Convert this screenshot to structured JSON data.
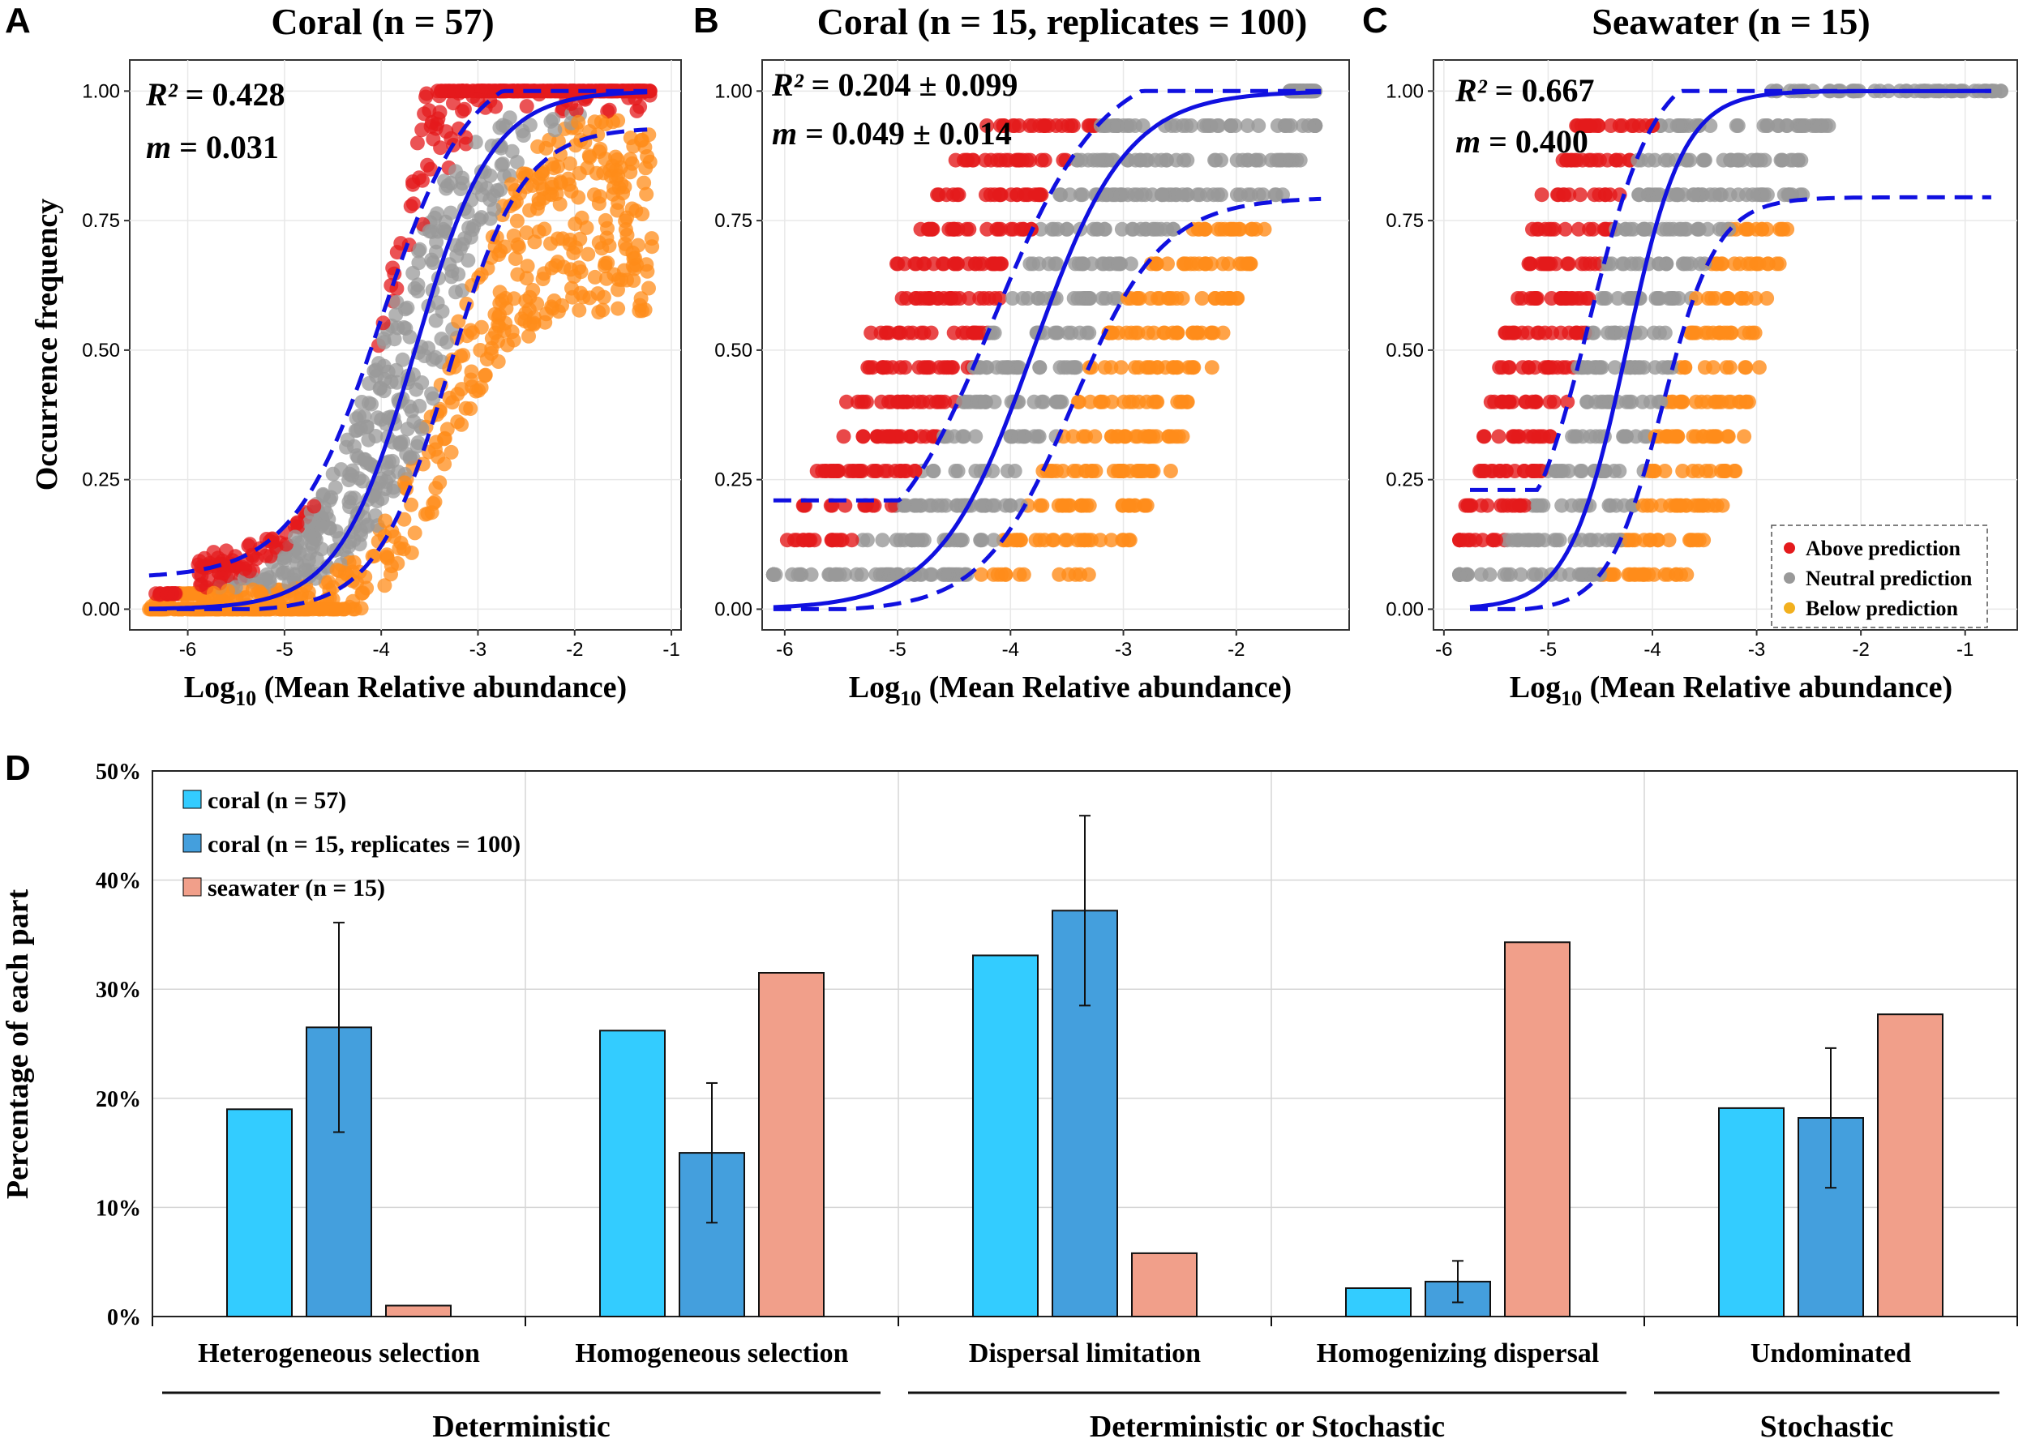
{
  "panel_labels": {
    "a": "A",
    "b": "B",
    "c": "C",
    "d": "D"
  },
  "colors": {
    "above": "#e41a1c",
    "neutral": "#999999",
    "below": "#ff8c1a",
    "fit": "#1010e0",
    "coral": "#33ccff",
    "coral_rep": "#449fdd",
    "seawater": "#f19f8a"
  },
  "chart_data": [
    {
      "id": "A",
      "type": "scatter",
      "title": "Coral (n = 57)",
      "xlabel_pre": "Log",
      "xlabel_sub": "10",
      "xlabel_post": " (Mean Relative abundance)",
      "ylabel": "Occurrence frequency",
      "xlim": [
        -6.6,
        -0.9
      ],
      "ylim": [
        -0.04,
        1.06
      ],
      "xticks": [
        "-6",
        "-5",
        "-4",
        "-3",
        "-2",
        "-1"
      ],
      "xtick_values": [
        -6,
        -5,
        -4,
        -3,
        -2,
        -1
      ],
      "yticks": [
        "0.00",
        "0.25",
        "0.50",
        "0.75",
        "1.00"
      ],
      "ytick_values": [
        0,
        0.25,
        0.5,
        0.75,
        1.0
      ],
      "r2_label": "R²",
      "r2_value": "= 0.428",
      "m_label": "m",
      "m_value": "= 0.031",
      "fit": {
        "midpoint": -3.65,
        "slope": 2.2,
        "upper_plateau": 0.935,
        "start_x": -6.4,
        "end_x": -1.25
      },
      "scatter_mode": "continuous",
      "x_range": [
        -6.4,
        -1.2
      ],
      "n_points": 1400
    },
    {
      "id": "B",
      "type": "scatter",
      "title": "Coral (n = 15, replicates = 100)",
      "xlabel_pre": "Log",
      "xlabel_sub": "10",
      "xlabel_post": " (Mean Relative abundance)",
      "ylabel": "",
      "xlim": [
        -6.2,
        -1.0
      ],
      "ylim": [
        -0.04,
        1.06
      ],
      "xticks": [
        "-6",
        "-5",
        "-4",
        "-3",
        "-2"
      ],
      "xtick_values": [
        -6,
        -5,
        -4,
        -3,
        -2
      ],
      "yticks": [
        "0.00",
        "0.25",
        "0.50",
        "0.75",
        "1.00"
      ],
      "ytick_values": [
        0,
        0.25,
        0.5,
        0.75,
        1.0
      ],
      "r2_label": "R²",
      "r2_value": "= 0.204 ± 0.099",
      "m_label": "m",
      "m_value": "= 0.049 ± 0.014",
      "fit": {
        "midpoint": -3.8,
        "slope": 2.1,
        "upper_plateau": 0.8,
        "start_x": -6.1,
        "end_x": -1.25,
        "lower_start": 0.21
      },
      "scatter_mode": "discrete",
      "levels": 15,
      "x_range": [
        -6.1,
        -1.3
      ]
    },
    {
      "id": "C",
      "type": "scatter",
      "title": "Seawater (n = 15)",
      "xlabel_pre": "Log",
      "xlabel_sub": "10",
      "xlabel_post": " (Mean Relative abundance)",
      "ylabel": "",
      "xlim": [
        -6.1,
        -0.5
      ],
      "ylim": [
        -0.04,
        1.06
      ],
      "xticks": [
        "-6",
        "-5",
        "-4",
        "-3",
        "-2",
        "-1"
      ],
      "xtick_values": [
        -6,
        -5,
        -4,
        -3,
        -2,
        -1
      ],
      "yticks": [
        "0.00",
        "0.25",
        "0.50",
        "0.75",
        "1.00"
      ],
      "ytick_values": [
        0,
        0.25,
        0.5,
        0.75,
        1.0
      ],
      "r2_label": "R²",
      "r2_value": "= 0.667",
      "m_label": "m",
      "m_value": "= 0.400",
      "fit": {
        "midpoint": -4.25,
        "slope": 3.2,
        "upper_plateau": 0.8,
        "start_x": -5.75,
        "end_x": -0.75,
        "lower_start": 0.23
      },
      "scatter_mode": "discrete",
      "levels": 15,
      "x_range": [
        -5.85,
        -0.65
      ],
      "legend": [
        "Above prediction",
        "Neutral prediction",
        "Below prediction"
      ]
    },
    {
      "id": "D",
      "type": "bar",
      "ylabel": "Percentage of each part",
      "ylim": [
        0,
        50
      ],
      "yticks": [
        "0%",
        "10%",
        "20%",
        "30%",
        "40%",
        "50%"
      ],
      "ytick_values": [
        0,
        10,
        20,
        30,
        40,
        50
      ],
      "categories": [
        "Heterogeneous selection",
        "Homogeneous selection",
        "Dispersal limitation",
        "Homogenizing dispersal",
        "Undominated"
      ],
      "series": [
        {
          "name": "coral (n = 57)",
          "values": [
            19.0,
            26.2,
            33.1,
            2.6,
            19.1
          ]
        },
        {
          "name": "coral (n = 15, replicates = 100)",
          "values": [
            26.5,
            15.0,
            37.2,
            3.2,
            18.2
          ],
          "errors": [
            9.6,
            6.4,
            8.7,
            1.9,
            6.4
          ]
        },
        {
          "name": "seawater (n = 15)",
          "values": [
            1.0,
            31.5,
            5.8,
            34.3,
            27.7
          ]
        }
      ],
      "groups": [
        {
          "label": "Deterministic",
          "categories": [
            "Heterogeneous selection",
            "Homogeneous selection"
          ]
        },
        {
          "label": "Deterministic or Stochastic",
          "categories": [
            "Dispersal limitation",
            "Homogenizing dispersal"
          ]
        },
        {
          "label": "Stochastic",
          "categories": [
            "Undominated"
          ]
        }
      ]
    }
  ]
}
